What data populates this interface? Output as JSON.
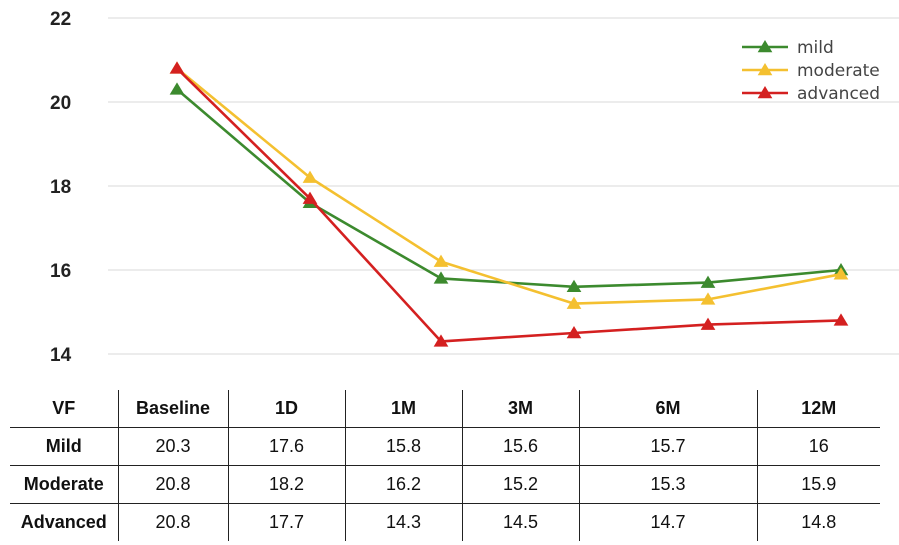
{
  "chart_data": {
    "type": "line",
    "categories": [
      "Baseline",
      "1D",
      "1M",
      "3M",
      "6M",
      "12M"
    ],
    "ylim": [
      14,
      22
    ],
    "yticks": [
      14,
      16,
      18,
      20,
      22
    ],
    "grid": true,
    "legend_position": "top-right",
    "series": [
      {
        "name": "mild",
        "color": "#3c8a2e",
        "values": [
          20.3,
          17.6,
          15.8,
          15.6,
          15.7,
          16
        ]
      },
      {
        "name": "moderate",
        "color": "#f4c030",
        "values": [
          20.8,
          18.2,
          16.2,
          15.2,
          15.3,
          15.9
        ]
      },
      {
        "name": "advanced",
        "color": "#d42020",
        "values": [
          20.8,
          17.7,
          14.3,
          14.5,
          14.7,
          14.8
        ]
      }
    ]
  },
  "table": {
    "headers": [
      "VF",
      "Baseline",
      "1D",
      "1M",
      "3M",
      "6M",
      "12M"
    ],
    "rows": [
      {
        "label": "Mild",
        "values": [
          "20.3",
          "17.6",
          "15.8",
          "15.6",
          "15.7",
          "16"
        ]
      },
      {
        "label": "Moderate",
        "values": [
          "20.8",
          "18.2",
          "16.2",
          "15.2",
          "15.3",
          "15.9"
        ]
      },
      {
        "label": "Advanced",
        "values": [
          "20.8",
          "17.7",
          "14.3",
          "14.5",
          "14.7",
          "14.8"
        ]
      }
    ]
  }
}
